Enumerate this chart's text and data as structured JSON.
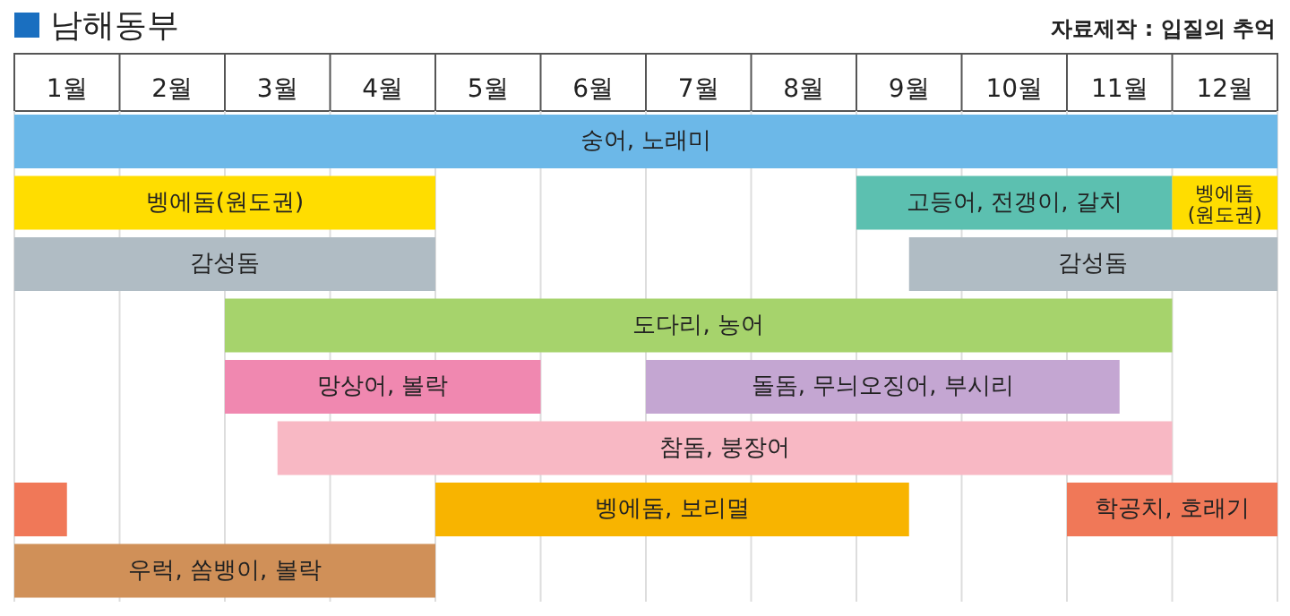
{
  "chart_data": {
    "type": "bar",
    "orientation": "horizontal",
    "title": "남해동부",
    "annotations": [
      "자료제작 : 입질의 추억"
    ],
    "categories": [
      null,
      null,
      null,
      null,
      null,
      null,
      null,
      null
    ],
    "xlim": [
      0,
      12
    ],
    "xticks": [
      {
        "value": 0,
        "label": null
      },
      {
        "value": 0.5,
        "label": "1월"
      },
      {
        "value": 1,
        "label": null
      },
      {
        "value": 1.5,
        "label": "2월"
      },
      {
        "value": 2,
        "label": null
      },
      {
        "value": 2.5,
        "label": "3월"
      },
      {
        "value": 3,
        "label": null
      },
      {
        "value": 3.5,
        "label": "4월"
      },
      {
        "value": 4,
        "label": null
      },
      {
        "value": 4.5,
        "label": "5월"
      },
      {
        "value": 5,
        "label": null
      },
      {
        "value": 5.5,
        "label": "6월"
      },
      {
        "value": 6,
        "label": null
      },
      {
        "value": 6.5,
        "label": "7월"
      },
      {
        "value": 7,
        "label": null
      },
      {
        "value": 7.5,
        "label": "8월"
      },
      {
        "value": 8,
        "label": null
      },
      {
        "value": 8.5,
        "label": "9월"
      },
      {
        "value": 9,
        "label": null
      },
      {
        "value": 9.5,
        "label": "10월"
      },
      {
        "value": 10,
        "label": null
      },
      {
        "value": 10.5,
        "label": "11월"
      },
      {
        "value": 11,
        "label": null
      },
      {
        "value": 11.5,
        "label": "12월"
      },
      {
        "value": 12,
        "label": null
      }
    ],
    "tick_labels": "x",
    "grid": "x",
    "legend": false,
    "series": [
      {
        "name": "숭어, 노래미",
        "color": "#6cb8e8",
        "values": [
          12,
          null,
          null,
          null,
          null,
          null,
          null,
          null
        ],
        "base": [
          0,
          null,
          null,
          null,
          null,
          null,
          null,
          null
        ]
      },
      {
        "name": "벵에돔(원도권)",
        "color": "#ffdd00",
        "values": [
          null,
          4,
          null,
          null,
          null,
          null,
          null,
          null
        ],
        "base": [
          null,
          0,
          null,
          null,
          null,
          null,
          null,
          null
        ]
      },
      {
        "name": "고등어, 전갱이, 갈치",
        "color": "#5cc0b0",
        "values": [
          null,
          3,
          null,
          null,
          null,
          null,
          null,
          null
        ],
        "base": [
          null,
          8,
          null,
          null,
          null,
          null,
          null,
          null
        ]
      },
      {
        "name": "벵에돔(원도권)",
        "color": "#ffdd00",
        "values": [
          null,
          1,
          null,
          null,
          null,
          null,
          null,
          null
        ],
        "base": [
          null,
          11,
          null,
          null,
          null,
          null,
          null,
          null
        ]
      },
      {
        "name": "감성돔",
        "color": "#b0bcc4",
        "values": [
          null,
          null,
          4,
          null,
          null,
          null,
          null,
          null
        ],
        "base": [
          null,
          null,
          0,
          null,
          null,
          null,
          null,
          null
        ]
      },
      {
        "name": "감성돔",
        "color": "#b0bcc4",
        "values": [
          null,
          null,
          3.5,
          null,
          null,
          null,
          null,
          null
        ],
        "base": [
          null,
          null,
          8.5,
          null,
          null,
          null,
          null,
          null
        ]
      },
      {
        "name": "도다리, 농어",
        "color": "#a6d36c",
        "values": [
          null,
          null,
          null,
          9,
          null,
          null,
          null,
          null
        ],
        "base": [
          null,
          null,
          null,
          2,
          null,
          null,
          null,
          null
        ]
      },
      {
        "name": "망상어, 볼락",
        "color": "#f088b0",
        "values": [
          null,
          null,
          null,
          null,
          3,
          null,
          null,
          null
        ],
        "base": [
          null,
          null,
          null,
          null,
          2,
          null,
          null,
          null
        ]
      },
      {
        "name": "돌돔, 무늬오징어, 부시리",
        "color": "#c4a6d2",
        "values": [
          null,
          null,
          null,
          null,
          4.5,
          null,
          null,
          null
        ],
        "base": [
          null,
          null,
          null,
          null,
          6,
          null,
          null,
          null
        ]
      },
      {
        "name": "참돔, 붕장어",
        "color": "#f8b8c4",
        "values": [
          null,
          null,
          null,
          null,
          null,
          8.5,
          null,
          null
        ],
        "base": [
          null,
          null,
          null,
          null,
          null,
          2.5,
          null,
          null
        ]
      },
      {
        "color": "#f07858",
        "values": [
          null,
          null,
          null,
          null,
          null,
          null,
          0.5,
          null
        ],
        "base": [
          null,
          null,
          null,
          null,
          null,
          null,
          0,
          null
        ]
      },
      {
        "name": "벵에돔, 보리멸",
        "color": "#f8b400",
        "values": [
          null,
          null,
          null,
          null,
          null,
          null,
          4.5,
          null
        ],
        "base": [
          null,
          null,
          null,
          null,
          null,
          null,
          4,
          null
        ]
      },
      {
        "name": "학공치, 호래기",
        "color": "#f07858",
        "values": [
          null,
          null,
          null,
          null,
          null,
          null,
          2,
          null
        ],
        "base": [
          null,
          null,
          null,
          null,
          null,
          null,
          10,
          null
        ]
      },
      {
        "name": "우럭, 쏨뱅이, 볼락",
        "color": "#d09058",
        "values": [
          null,
          null,
          null,
          null,
          null,
          null,
          null,
          4
        ],
        "base": [
          null,
          null,
          null,
          null,
          null,
          null,
          null,
          0
        ]
      }
    ]
  }
}
